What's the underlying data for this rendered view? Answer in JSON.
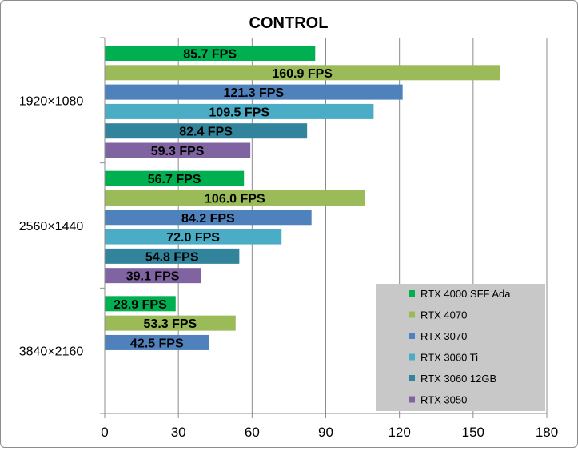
{
  "chart_data": {
    "type": "bar",
    "orientation": "horizontal",
    "title": "CONTROL",
    "xlabel": "",
    "ylabel": "",
    "xlim": [
      0,
      180
    ],
    "x_ticks": [
      0,
      30,
      60,
      90,
      120,
      150,
      180
    ],
    "grid": true,
    "legend_position": "bottom-right",
    "value_suffix": " FPS",
    "categories": [
      "1920×1080",
      "2560×1440",
      "3840×2160"
    ],
    "series": [
      {
        "name": "RTX 4000 SFF Ada",
        "color": "#00b050",
        "values": [
          85.7,
          56.7,
          28.9
        ]
      },
      {
        "name": "RTX 4070",
        "color": "#9bbb59",
        "values": [
          160.9,
          106.0,
          53.3
        ]
      },
      {
        "name": "RTX 3070",
        "color": "#4f81bd",
        "values": [
          121.3,
          84.2,
          42.5
        ]
      },
      {
        "name": "RTX 3060 Ti",
        "color": "#4bacc6",
        "values": [
          109.5,
          72.0,
          null
        ]
      },
      {
        "name": "RTX 3060 12GB",
        "color": "#31849b",
        "values": [
          82.4,
          54.8,
          null
        ]
      },
      {
        "name": "RTX 3050",
        "color": "#8064a2",
        "values": [
          59.3,
          39.1,
          null
        ]
      }
    ]
  }
}
